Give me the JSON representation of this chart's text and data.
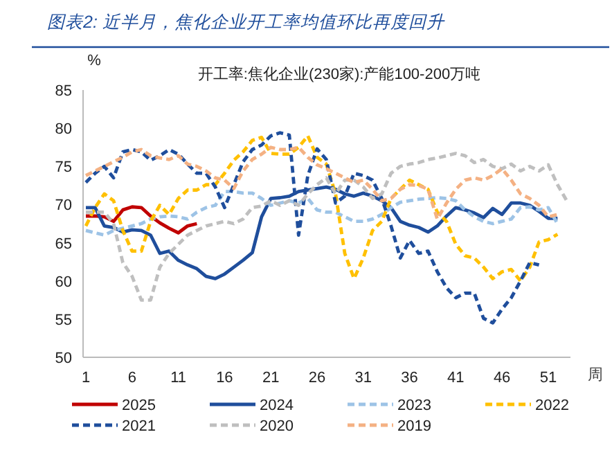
{
  "chart_data": {
    "type": "line",
    "title": "图表2:  近半月，焦化企业开工率均值环比再度回升",
    "subtitle": "开工率:焦化企业(230家):产能100-200万吨",
    "ylabel": "%",
    "xlabel": "周",
    "x": [
      1,
      2,
      3,
      4,
      5,
      6,
      7,
      8,
      9,
      10,
      11,
      12,
      13,
      14,
      15,
      16,
      17,
      18,
      19,
      20,
      21,
      22,
      23,
      24,
      25,
      26,
      27,
      28,
      29,
      30,
      31,
      32,
      33,
      34,
      35,
      36,
      37,
      38,
      39,
      40,
      41,
      42,
      43,
      44,
      45,
      46,
      47,
      48,
      49,
      50,
      51,
      52,
      53
    ],
    "xlim": [
      0.7,
      53.4
    ],
    "xticks": [
      1,
      6,
      11,
      16,
      21,
      26,
      31,
      36,
      41,
      46,
      51
    ],
    "ylim": [
      50,
      85
    ],
    "yticks": [
      50,
      55,
      60,
      65,
      70,
      75,
      80,
      85
    ],
    "grid": false,
    "legend": "bottom",
    "marker": "none",
    "series": [
      {
        "name": "2025",
        "color": "#c00000",
        "line_style": "solid",
        "values": [
          68.5,
          68.5,
          68.4,
          67.8,
          69.3,
          69.7,
          69.6,
          68.5,
          67.6,
          66.9,
          66.3,
          67.2,
          67.5,
          null,
          null,
          null,
          null,
          null,
          null,
          null,
          null,
          null,
          null,
          null,
          null,
          null,
          null,
          null,
          null,
          null,
          null,
          null,
          null,
          null,
          null,
          null,
          null,
          null,
          null,
          null,
          null,
          null,
          null,
          null,
          null,
          null,
          null,
          null,
          null,
          null,
          null,
          null,
          null
        ]
      },
      {
        "name": "2024",
        "color": "#1f4e9c",
        "line_style": "solid",
        "values": [
          69.6,
          69.6,
          67.2,
          67.0,
          66.4,
          66.7,
          66.6,
          66.0,
          63.6,
          63.9,
          62.7,
          62.1,
          61.6,
          60.6,
          60.3,
          60.9,
          61.8,
          62.7,
          63.7,
          68.4,
          70.8,
          70.9,
          71.1,
          71.7,
          71.9,
          72.1,
          72.3,
          72.0,
          71.4,
          71.1,
          71.5,
          71.1,
          70.5,
          69.6,
          67.8,
          67.3,
          67.0,
          66.4,
          67.2,
          68.5,
          69.6,
          69.3,
          68.9,
          68.3,
          69.5,
          68.7,
          70.2,
          70.2,
          69.9,
          69.1,
          68.2,
          68.2,
          null
        ]
      },
      {
        "name": "2023",
        "color": "#9dc3e6",
        "line_style": "dashed",
        "values": [
          66.6,
          66.3,
          66.0,
          66.6,
          66.9,
          67.2,
          67.5,
          68.1,
          68.4,
          68.5,
          68.4,
          68.1,
          69.0,
          69.6,
          69.9,
          71.7,
          71.7,
          71.5,
          71.5,
          70.8,
          69.9,
          70.2,
          70.5,
          70.2,
          70.8,
          69.3,
          69.0,
          69.0,
          68.4,
          67.8,
          67.8,
          68.1,
          68.7,
          69.6,
          70.3,
          70.5,
          70.7,
          70.8,
          70.9,
          70.8,
          70.5,
          69.3,
          68.4,
          67.8,
          67.5,
          67.8,
          68.1,
          69.6,
          69.7,
          69.3,
          69.6,
          67.5,
          null
        ]
      },
      {
        "name": "2022",
        "color": "#ffc000",
        "line_style": "dashed",
        "values": [
          67.2,
          69.6,
          71.4,
          70.5,
          66.6,
          63.9,
          63.9,
          67.8,
          69.9,
          68.7,
          70.8,
          71.9,
          71.9,
          72.6,
          72.6,
          74.1,
          75.8,
          76.9,
          78.4,
          78.8,
          76.7,
          76.6,
          76.6,
          77.5,
          79.0,
          76.2,
          75.3,
          71.4,
          63.6,
          60.3,
          63.0,
          66.6,
          67.8,
          70.8,
          72.0,
          73.2,
          72.6,
          72.0,
          69.0,
          67.8,
          64.8,
          63.3,
          63.0,
          61.8,
          60.3,
          61.2,
          61.5,
          60.0,
          61.8,
          65.1,
          65.4,
          66.1,
          null
        ]
      },
      {
        "name": "2021",
        "color": "#1f4e9c",
        "line_style": "dashed",
        "values": [
          72.9,
          74.1,
          75.0,
          73.5,
          76.9,
          77.2,
          76.9,
          75.8,
          76.4,
          77.2,
          76.6,
          75.3,
          74.1,
          74.1,
          72.3,
          69.6,
          72.6,
          75.6,
          77.2,
          77.8,
          79.0,
          79.4,
          79.1,
          66.0,
          73.8,
          77.3,
          75.9,
          70.2,
          71.1,
          74.1,
          73.8,
          73.2,
          70.8,
          67.2,
          63.0,
          65.3,
          63.6,
          63.9,
          61.2,
          59.1,
          57.8,
          58.4,
          58.4,
          55.1,
          54.5,
          56.3,
          57.8,
          60.0,
          62.4,
          62.1,
          null,
          null,
          null
        ]
      },
      {
        "name": "2020",
        "color": "#bfbfbf",
        "line_style": "dashed",
        "values": [
          69.0,
          69.0,
          69.0,
          67.5,
          62.4,
          60.6,
          57.5,
          57.5,
          61.8,
          63.6,
          64.8,
          66.0,
          66.6,
          67.2,
          67.5,
          67.8,
          67.5,
          68.1,
          69.6,
          69.8,
          70.5,
          69.9,
          70.5,
          69.9,
          71.4,
          72.6,
          73.5,
          71.4,
          73.2,
          73.2,
          72.3,
          70.8,
          71.4,
          74.1,
          75.0,
          75.3,
          75.5,
          75.9,
          76.1,
          76.4,
          76.7,
          76.4,
          75.5,
          75.9,
          75.0,
          74.7,
          75.3,
          74.4,
          75.0,
          74.4,
          75.2,
          72.6,
          70.5
        ]
      },
      {
        "name": "2019",
        "color": "#f4b183",
        "line_style": "dashed",
        "values": [
          73.8,
          74.4,
          75.0,
          75.6,
          76.2,
          76.9,
          77.2,
          76.4,
          76.1,
          75.9,
          76.4,
          75.3,
          75.0,
          74.4,
          73.5,
          73.2,
          72.1,
          74.4,
          75.9,
          76.6,
          77.5,
          77.2,
          77.2,
          77.5,
          76.2,
          75.2,
          74.7,
          74.1,
          73.5,
          72.9,
          73.2,
          72.0,
          70.5,
          70.8,
          72.0,
          72.6,
          72.5,
          72.0,
          68.1,
          70.2,
          72.0,
          73.2,
          73.5,
          73.2,
          73.8,
          74.7,
          73.2,
          71.4,
          70.8,
          69.9,
          68.4,
          68.7,
          null
        ]
      }
    ]
  }
}
